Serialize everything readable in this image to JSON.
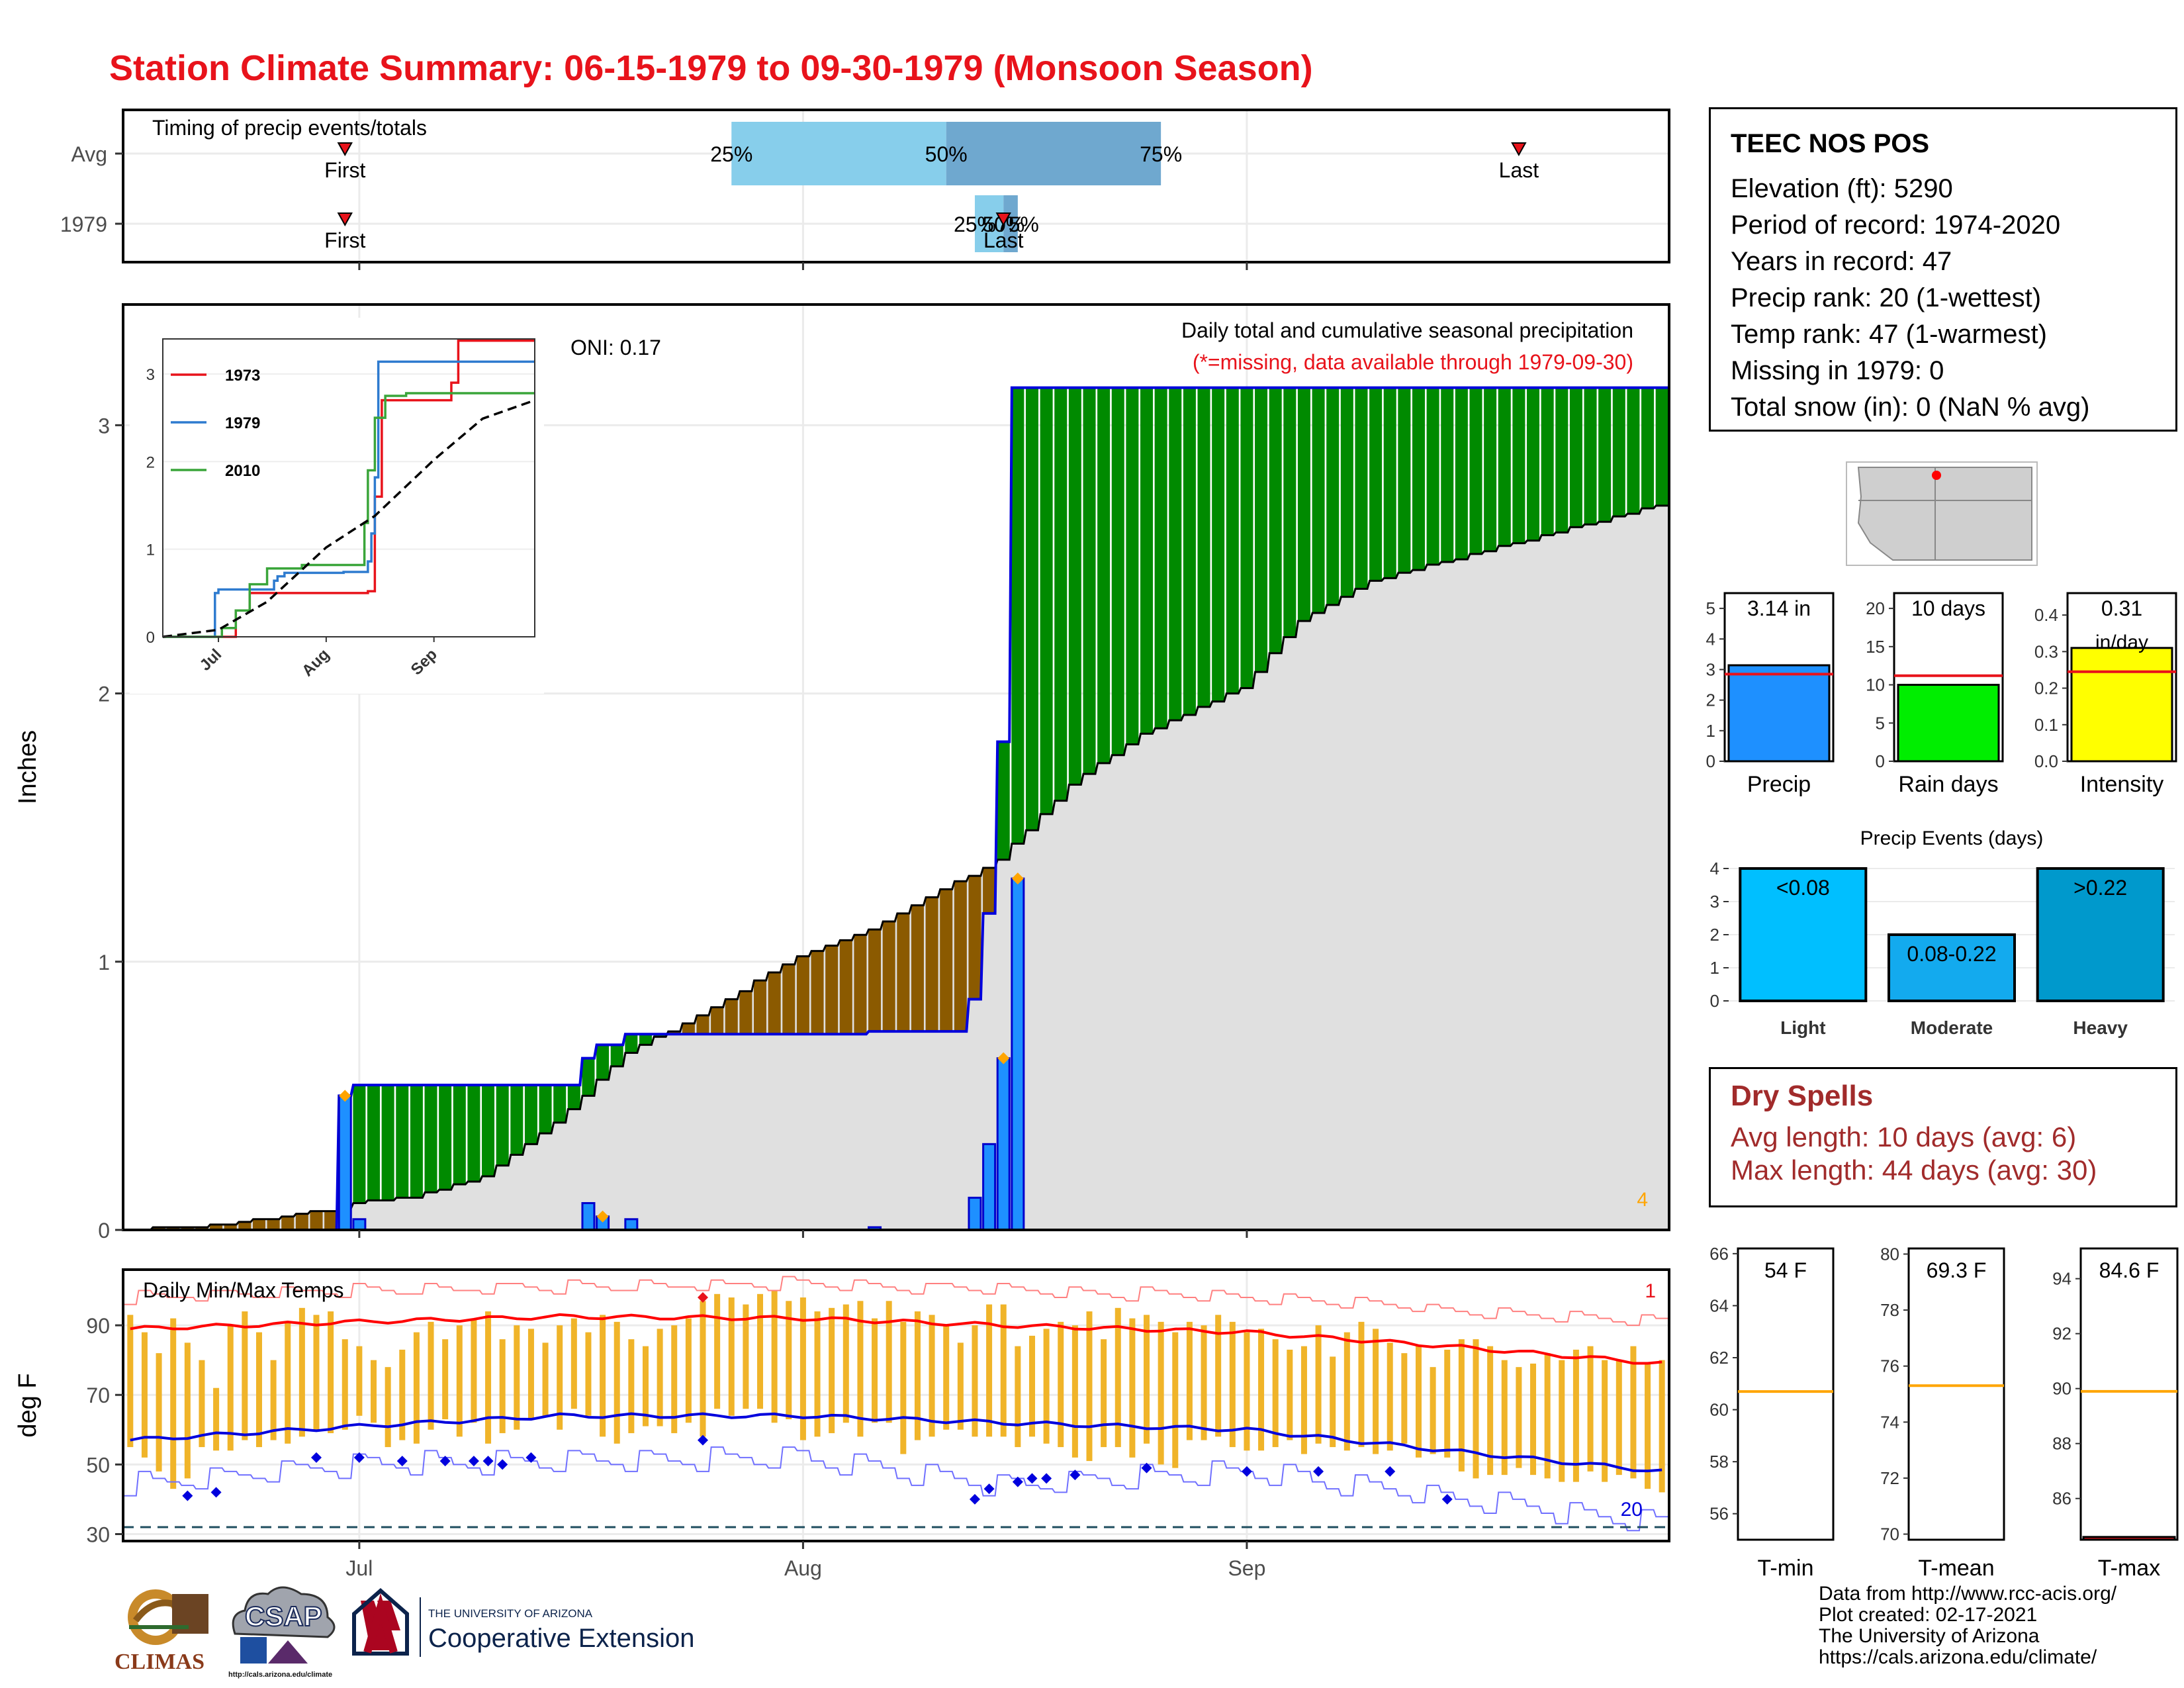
{
  "title": "Station Climate Summary: 06-15-1979 to 09-30-1979 (Monsoon Season)",
  "station": {
    "name": "TEEC NOS POS",
    "rows": [
      "Elevation (ft): 5290",
      "Period of record: 1974-2020",
      "Years in record: 47",
      "Precip rank: 20 (1-wettest)",
      "Temp rank: 47 (1-warmest)",
      "Missing in 1979: 0",
      "Total snow (in): 0 (NaN % avg)"
    ]
  },
  "dry_spells": {
    "title": "Dry Spells",
    "avg": "Avg length: 10 days (avg: 6)",
    "max": "Max length: 44 days (avg: 30)"
  },
  "credits": [
    "Data from http://www.rcc-acis.org/",
    "Plot created: 02-17-2021",
    "The University of Arizona",
    "https://cals.arizona.edu/climate/"
  ],
  "logos": {
    "climas": "CLIMAS",
    "csap": "CSAP",
    "csap_url": "http://cals.arizona.edu/climate",
    "ua_line1": "THE UNIVERSITY OF ARIZONA",
    "ua_line2": "Cooperative Extension"
  },
  "colors": {
    "title": "#e8131b",
    "cum_above": "#008a00",
    "cum_below": "#8b5a00",
    "avg_fill": "#e0e0e0",
    "daily_bar": "#1e90ff",
    "tmax_line": "#ff0000",
    "tmin_line": "#0000dd",
    "temp_bar": "#f0b429",
    "dry_spells": "#a12b2b"
  },
  "chart_data": [
    {
      "type": "timeline",
      "title": "Timing of precip events/totals",
      "rows": [
        "Avg",
        "1979"
      ],
      "markers": [
        {
          "row": "Avg",
          "label": "First",
          "date": "1979-06-30"
        },
        {
          "row": "Avg",
          "label": "Last",
          "date": "1979-09-20"
        },
        {
          "row": "1979",
          "label": "First",
          "date": "1979-06-30"
        },
        {
          "row": "1979",
          "label": "Last",
          "date": "1979-08-15"
        }
      ],
      "quartiles": [
        {
          "row": "Avg",
          "q25": "1979-07-27",
          "q50": "1979-08-11",
          "q75": "1979-08-26"
        },
        {
          "row": "1979",
          "q25": "1979-08-13",
          "q50": "1979-08-15",
          "q75": "1979-08-16"
        }
      ],
      "quartile_labels": [
        "25%",
        "50%",
        "75%"
      ],
      "x_ticks": [
        "Jul",
        "Aug",
        "Sep"
      ]
    },
    {
      "type": "area",
      "title": "Daily total and cumulative seasonal precipitation",
      "subtitle": "(*=missing, data available through 1979-09-30)",
      "annotation": "ONI: 0.17",
      "count_label": "4",
      "ylabel": "Inches",
      "ylim": [
        0,
        3.45
      ],
      "yticks": [
        0,
        1,
        2,
        3
      ],
      "x_ticks": [
        "Jul",
        "Aug",
        "Sep"
      ],
      "x_range": [
        "1979-06-15",
        "1979-09-30"
      ],
      "daily_precip": [
        {
          "date": "1979-06-30",
          "value": 0.5
        },
        {
          "date": "1979-07-01",
          "value": 0.04
        },
        {
          "date": "1979-07-17",
          "value": 0.1
        },
        {
          "date": "1979-07-18",
          "value": 0.05
        },
        {
          "date": "1979-07-20",
          "value": 0.04
        },
        {
          "date": "1979-08-06",
          "value": 0.01
        },
        {
          "date": "1979-08-13",
          "value": 0.12
        },
        {
          "date": "1979-08-14",
          "value": 0.32
        },
        {
          "date": "1979-08-15",
          "value": 0.64
        },
        {
          "date": "1979-08-16",
          "value": 1.31
        }
      ],
      "cumulative_1979": [
        [
          "1979-06-15",
          0
        ],
        [
          "1979-06-30",
          0.5
        ],
        [
          "1979-07-01",
          0.54
        ],
        [
          "1979-07-17",
          0.64
        ],
        [
          "1979-07-18",
          0.69
        ],
        [
          "1979-07-20",
          0.73
        ],
        [
          "1979-08-06",
          0.74
        ],
        [
          "1979-08-13",
          0.86
        ],
        [
          "1979-08-14",
          1.18
        ],
        [
          "1979-08-15",
          1.82
        ],
        [
          "1979-08-16",
          3.14
        ],
        [
          "1979-09-30",
          3.14
        ]
      ],
      "cumulative_avg": [
        [
          "1979-06-15",
          0
        ],
        [
          "1979-06-22",
          0.02
        ],
        [
          "1979-06-30",
          0.08
        ],
        [
          "1979-07-01",
          0.1
        ],
        [
          "1979-07-05",
          0.12
        ],
        [
          "1979-07-10",
          0.2
        ],
        [
          "1979-07-15",
          0.4
        ],
        [
          "1979-07-20",
          0.66
        ],
        [
          "1979-07-25",
          0.8
        ],
        [
          "1979-08-01",
          1.02
        ],
        [
          "1979-08-06",
          1.12
        ],
        [
          "1979-08-10",
          1.24
        ],
        [
          "1979-08-15",
          1.38
        ],
        [
          "1979-08-20",
          1.66
        ],
        [
          "1979-08-25",
          1.85
        ],
        [
          "1979-09-01",
          2.02
        ],
        [
          "1979-09-05",
          2.27
        ],
        [
          "1979-09-10",
          2.42
        ],
        [
          "1979-09-15",
          2.49
        ],
        [
          "1979-09-20",
          2.56
        ],
        [
          "1979-09-25",
          2.63
        ],
        [
          "1979-09-30",
          2.7
        ]
      ],
      "highlight_points": [
        "1979-06-30",
        "1979-07-18",
        "1979-08-15",
        "1979-08-16"
      ]
    },
    {
      "type": "line",
      "title": "",
      "series_names": [
        "1973",
        "1979",
        "2010"
      ],
      "ylim": [
        0,
        3.4
      ],
      "yticks": [
        0,
        1,
        2,
        3
      ],
      "x_ticks": [
        "Jul",
        "Aug",
        "Sep"
      ],
      "series": [
        {
          "name": "1973",
          "color": "#e8131b",
          "points": [
            [
              "1979-06-15",
              0
            ],
            [
              "1979-07-05",
              0
            ],
            [
              "1979-07-06",
              0.3
            ],
            [
              "1979-07-10",
              0.5
            ],
            [
              "1979-07-25",
              0.5
            ],
            [
              "1979-08-13",
              0.52
            ],
            [
              "1979-08-15",
              1.6
            ],
            [
              "1979-08-17",
              2.7
            ],
            [
              "1979-09-06",
              2.9
            ],
            [
              "1979-09-08",
              3.38
            ],
            [
              "1979-09-30",
              3.38
            ]
          ]
        },
        {
          "name": "1979",
          "color": "#2e7bcf",
          "points": [
            [
              "1979-06-15",
              0
            ],
            [
              "1979-06-30",
              0.5
            ],
            [
              "1979-07-01",
              0.54
            ],
            [
              "1979-07-17",
              0.64
            ],
            [
              "1979-07-18",
              0.69
            ],
            [
              "1979-07-20",
              0.73
            ],
            [
              "1979-08-06",
              0.74
            ],
            [
              "1979-08-13",
              0.86
            ],
            [
              "1979-08-14",
              1.18
            ],
            [
              "1979-08-15",
              1.82
            ],
            [
              "1979-08-16",
              3.14
            ],
            [
              "1979-09-30",
              3.14
            ]
          ]
        },
        {
          "name": "2010",
          "color": "#3aa53a",
          "points": [
            [
              "1979-06-15",
              0
            ],
            [
              "1979-07-01",
              0
            ],
            [
              "1979-07-02",
              0.1
            ],
            [
              "1979-07-06",
              0.3
            ],
            [
              "1979-07-10",
              0.6
            ],
            [
              "1979-07-15",
              0.78
            ],
            [
              "1979-07-25",
              0.82
            ],
            [
              "1979-08-12",
              1.3
            ],
            [
              "1979-08-13",
              1.9
            ],
            [
              "1979-08-15",
              2.5
            ],
            [
              "1979-08-18",
              2.75
            ],
            [
              "1979-08-24",
              2.78
            ],
            [
              "1979-09-30",
              2.78
            ]
          ]
        },
        {
          "name": "avg",
          "color": "#000000",
          "dashed": true,
          "points": [
            [
              "1979-06-15",
              0
            ],
            [
              "1979-07-01",
              0.08
            ],
            [
              "1979-07-15",
              0.4
            ],
            [
              "1979-08-01",
              1.02
            ],
            [
              "1979-08-15",
              1.38
            ],
            [
              "1979-09-01",
              2.02
            ],
            [
              "1979-09-15",
              2.49
            ],
            [
              "1979-09-30",
              2.7
            ]
          ]
        }
      ]
    },
    {
      "type": "bar",
      "title": "Daily Min/Max Temps",
      "ylabel": "deg F",
      "ylim": [
        28,
        106
      ],
      "yticks": [
        30,
        50,
        70,
        90
      ],
      "x_ticks": [
        "Jul",
        "Aug",
        "Sep"
      ],
      "count_max": "1",
      "count_min": "20",
      "freeze_line": 32,
      "avg_tmax": [
        [
          "1979-06-15",
          89
        ],
        [
          "1979-07-01",
          91
        ],
        [
          "1979-07-15",
          92.5
        ],
        [
          "1979-08-01",
          92
        ],
        [
          "1979-08-15",
          90
        ],
        [
          "1979-09-01",
          88
        ],
        [
          "1979-09-15",
          84
        ],
        [
          "1979-09-30",
          79
        ]
      ],
      "avg_tmin": [
        [
          "1979-06-15",
          57
        ],
        [
          "1979-07-01",
          61
        ],
        [
          "1979-07-15",
          64
        ],
        [
          "1979-08-01",
          64
        ],
        [
          "1979-08-15",
          62
        ],
        [
          "1979-09-01",
          60
        ],
        [
          "1979-09-15",
          54
        ],
        [
          "1979-09-30",
          48
        ]
      ],
      "record_high": [
        [
          "1979-06-15",
          98
        ],
        [
          "1979-07-01",
          100
        ],
        [
          "1979-08-01",
          102
        ],
        [
          "1979-09-01",
          98
        ],
        [
          "1979-09-30",
          91
        ]
      ],
      "record_low": [
        [
          "1979-06-15",
          44
        ],
        [
          "1979-07-01",
          50
        ],
        [
          "1979-08-01",
          52
        ],
        [
          "1979-08-15",
          44
        ],
        [
          "1979-09-01",
          48
        ],
        [
          "1979-09-30",
          33
        ]
      ],
      "daily_tmax": [
        93,
        88,
        82,
        92,
        85,
        80,
        72,
        90,
        94,
        88,
        80,
        91,
        95,
        93,
        94,
        86,
        84,
        80,
        78,
        83,
        88,
        91,
        86,
        90,
        92,
        94,
        86,
        90,
        89,
        85,
        90,
        92,
        88,
        93,
        91,
        86,
        84,
        89,
        90,
        92,
        97,
        99,
        98,
        96,
        99,
        100,
        97,
        98,
        94,
        95,
        96,
        97,
        92,
        97,
        91,
        94,
        93,
        90,
        85,
        90,
        96,
        96,
        84,
        87,
        89,
        91,
        90,
        94,
        86,
        95,
        92,
        93,
        91,
        88,
        91,
        90,
        93,
        91,
        88,
        89,
        86,
        83,
        84,
        90,
        81,
        88,
        91,
        89,
        85,
        82,
        84,
        78,
        83,
        86,
        86,
        84,
        80,
        78,
        79,
        82,
        80,
        83,
        84,
        80,
        80,
        84,
        79,
        80
      ],
      "daily_tmin": [
        55,
        52,
        48,
        43,
        46,
        55,
        54,
        54,
        57,
        55,
        57,
        56,
        58,
        60,
        59,
        60,
        64,
        62,
        55,
        57,
        56,
        60,
        63,
        58,
        62,
        56,
        59,
        60,
        63,
        64,
        60,
        66,
        64,
        58,
        56,
        59,
        61,
        61,
        59,
        62,
        58,
        66,
        64,
        66,
        66,
        62,
        63,
        57,
        58,
        59,
        62,
        58,
        62,
        62,
        53,
        57,
        58,
        60,
        60,
        58,
        58,
        58,
        55,
        58,
        56,
        55,
        52,
        51,
        55,
        55,
        52,
        56,
        50,
        49,
        57,
        57,
        58,
        55,
        54,
        54,
        55,
        57,
        53,
        56,
        55,
        54,
        55,
        53,
        54,
        56,
        52,
        53,
        52,
        48,
        46,
        47,
        47,
        49,
        47,
        46,
        45,
        45,
        48,
        45,
        47,
        46,
        43,
        42
      ],
      "low_markers": [
        [
          "1979-06-19",
          41
        ],
        [
          "1979-06-21",
          42
        ],
        [
          "1979-06-28",
          52
        ],
        [
          "1979-07-01",
          52
        ],
        [
          "1979-07-04",
          51
        ],
        [
          "1979-07-07",
          51
        ],
        [
          "1979-07-09",
          51
        ],
        [
          "1979-07-10",
          51
        ],
        [
          "1979-07-11",
          50
        ],
        [
          "1979-07-13",
          52
        ],
        [
          "1979-07-25",
          57
        ],
        [
          "1979-08-13",
          40
        ],
        [
          "1979-08-14",
          43
        ],
        [
          "1979-08-16",
          45
        ],
        [
          "1979-08-17",
          46
        ],
        [
          "1979-08-18",
          46
        ],
        [
          "1979-08-20",
          47
        ],
        [
          "1979-08-25",
          49
        ],
        [
          "1979-09-01",
          48
        ],
        [
          "1979-09-06",
          48
        ],
        [
          "1979-09-11",
          48
        ],
        [
          "1979-09-15",
          40
        ]
      ],
      "high_markers": [
        [
          "1979-07-25",
          98
        ]
      ]
    },
    {
      "type": "bar",
      "title": "",
      "categories": [
        "Precip",
        "Rain days",
        "Intensity"
      ],
      "panels": [
        {
          "category": "Precip",
          "value": 3.14,
          "avg": 2.85,
          "ylim": [
            0,
            5.5
          ],
          "yticks": [
            0,
            1,
            2,
            3,
            4,
            5
          ],
          "label": "3.14 in",
          "color": "#1e90ff"
        },
        {
          "category": "Rain days",
          "value": 10,
          "avg": 11.2,
          "ylim": [
            0,
            22
          ],
          "yticks": [
            0,
            5,
            10,
            15,
            20
          ],
          "label": "10 days",
          "color": "#00ee00"
        },
        {
          "category": "Intensity",
          "value": 0.31,
          "avg": 0.245,
          "ylim": [
            0,
            0.46
          ],
          "yticks": [
            "0.0",
            "0.1",
            "0.2",
            "0.3",
            "0.4"
          ],
          "label": "0.31",
          "sublabel": "in/day",
          "color": "#ffff00"
        }
      ]
    },
    {
      "type": "bar",
      "title": "Precip Events (days)",
      "categories": [
        "Light",
        "Moderate",
        "Heavy"
      ],
      "values": [
        4,
        2,
        4
      ],
      "bar_labels": [
        "<0.08",
        "0.08-0.22",
        ">0.22"
      ],
      "ylim": [
        0,
        4.2
      ],
      "yticks": [
        0,
        1,
        2,
        3,
        4
      ],
      "colors": [
        "#00bfff",
        "#13aaee",
        "#0099cc"
      ]
    },
    {
      "type": "bar",
      "title": "",
      "categories": [
        "T-min",
        "T-mean",
        "T-max"
      ],
      "panels": [
        {
          "category": "T-min",
          "value": 54,
          "avg": 60.7,
          "ylim": [
            55,
            66.2
          ],
          "yticks": [
            56,
            58,
            60,
            62,
            64,
            66
          ],
          "label": "54 F"
        },
        {
          "category": "T-mean",
          "value": 69.3,
          "avg": 75.3,
          "ylim": [
            69.8,
            80.2
          ],
          "yticks": [
            70,
            72,
            74,
            76,
            78,
            80
          ],
          "label": "69.3 F"
        },
        {
          "category": "T-max",
          "value": 84.6,
          "avg": 89.9,
          "ylim": [
            84.5,
            95.1
          ],
          "yticks": [
            86,
            88,
            90,
            92,
            94
          ],
          "label": "84.6 F"
        }
      ]
    }
  ]
}
